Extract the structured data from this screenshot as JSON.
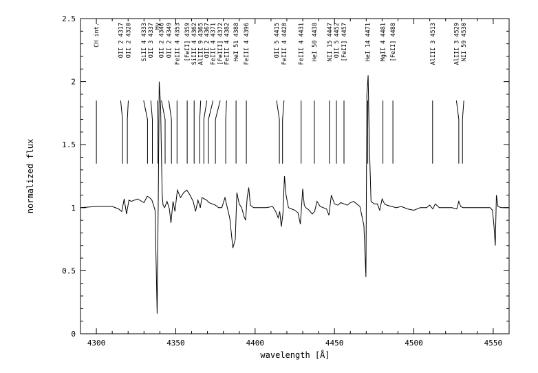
{
  "chart_data": {
    "type": "line",
    "title": "",
    "xlabel": "wavelength [Å]",
    "ylabel": "normalized flux",
    "xlim": [
      4290,
      4560
    ],
    "ylim": [
      0,
      2.5
    ],
    "xticks": [
      4300,
      4350,
      4400,
      4450,
      4500,
      4550
    ],
    "xtick_labels": [
      "4300",
      "4350",
      "4400",
      "4450",
      "4500",
      "4550"
    ],
    "yticks": [
      0,
      0.5,
      1,
      1.5,
      2,
      2.5
    ],
    "ytick_labels": [
      "0",
      "0.5",
      "1",
      "1.5",
      "2",
      "2.5"
    ],
    "grid": false,
    "series": [
      {
        "x": [
          4290,
          4300,
          4310,
          4314,
          4316,
          4317.5,
          4319,
          4320.5,
          4322,
          4326,
          4330,
          4332,
          4333.5,
          4335,
          4337,
          4338.3,
          4339,
          4339.6,
          4340.5,
          4341,
          4341.5,
          4342,
          4343,
          4344.5,
          4346,
          4347,
          4348.3,
          4349.5,
          4351,
          4353,
          4355,
          4357,
          4359,
          4361,
          4362.5,
          4364,
          4365.5,
          4366.5,
          4368,
          4369.5,
          4371,
          4373,
          4375,
          4377,
          4379,
          4381,
          4382.5,
          4384,
          4386,
          4387.5,
          4388.5,
          4390,
          4391.5,
          4393,
          4394,
          4395,
          4396,
          4397,
          4399,
          4403,
          4407,
          4411,
          4413,
          4414.5,
          4415.5,
          4416.5,
          4417.5,
          4418.5,
          4419.5,
          4421,
          4423,
          4425,
          4427,
          4428.5,
          4430,
          4431,
          4432,
          4434,
          4436,
          4437.5,
          4439,
          4441,
          4443,
          4445,
          4446.5,
          4448,
          4450,
          4452,
          4454,
          4456,
          4458,
          4460,
          4462,
          4464,
          4466,
          4468.5,
          4469.8,
          4470.4,
          4471.2,
          4472,
          4473,
          4475,
          4477,
          4478.5,
          4480,
          4481.5,
          4483,
          4486,
          4489,
          4492,
          4496,
          4500,
          4504,
          4508,
          4510,
          4512,
          4513.5,
          4516,
          4520,
          4524,
          4527,
          4528.3,
          4529.5,
          4531,
          4535,
          4540,
          4545,
          4548,
          4549.5,
          4550.5,
          4551.3,
          4552,
          4553,
          4555,
          4560
        ],
        "y": [
          1.0,
          1.01,
          1.01,
          0.99,
          0.97,
          1.07,
          0.95,
          1.06,
          1.05,
          1.07,
          1.04,
          1.09,
          1.08,
          1.06,
          0.98,
          0.16,
          1.1,
          2.0,
          1.8,
          1.4,
          1.1,
          1.02,
          1.0,
          1.05,
          0.99,
          0.88,
          1.05,
          0.97,
          1.14,
          1.08,
          1.12,
          1.14,
          1.1,
          1.05,
          0.97,
          1.06,
          1.0,
          1.08,
          1.07,
          1.06,
          1.04,
          1.03,
          1.02,
          1.0,
          1.0,
          1.08,
          1.0,
          0.92,
          0.68,
          0.75,
          1.12,
          1.03,
          1.0,
          0.93,
          0.9,
          1.08,
          1.16,
          1.02,
          1.0,
          1.0,
          1.0,
          1.01,
          0.97,
          0.92,
          0.97,
          0.85,
          0.95,
          1.25,
          1.1,
          1.0,
          0.99,
          0.98,
          0.96,
          0.87,
          1.15,
          1.02,
          1.0,
          0.98,
          0.95,
          0.97,
          1.05,
          1.01,
          1.0,
          0.99,
          0.94,
          1.1,
          1.03,
          1.02,
          1.04,
          1.03,
          1.02,
          1.04,
          1.05,
          1.03,
          1.01,
          0.86,
          0.45,
          1.9,
          2.05,
          1.5,
          1.05,
          1.03,
          1.03,
          0.98,
          1.07,
          1.03,
          1.02,
          1.01,
          1.0,
          1.01,
          0.99,
          0.98,
          1.0,
          1.0,
          1.02,
          0.99,
          1.03,
          1.0,
          1.0,
          1.0,
          0.99,
          1.05,
          1.01,
          1.0,
          1.0,
          1.0,
          1.0,
          1.0,
          0.98,
          0.85,
          0.7,
          1.1,
          1.01,
          1.0,
          1.0
        ]
      }
    ],
    "line_ids": [
      {
        "label": "CH int.",
        "lam": 4300.0,
        "top": 4300.0,
        "bottom": 4300.0
      },
      {
        "label": "OII 2 4317",
        "lam": 4317.1,
        "top": 4315.3,
        "bottom": 4316.5
      },
      {
        "label": "OII 2 4320",
        "lam": 4319.6,
        "top": 4320.1,
        "bottom": 4319.5
      },
      {
        "label": "SiII 4 4333",
        "lam": 4332.7,
        "top": 4329.8,
        "bottom": 4332.2
      },
      {
        "label": "OII 3 4337",
        "lam": 4336.9,
        "top": 4334.3,
        "bottom": 4335.3
      },
      {
        "label": "Hγ",
        "lam": 4340.5,
        "top": 4338.4,
        "bottom": 4338.8
      },
      {
        "label": "OII 2 4346",
        "lam": 4345.6,
        "top": 4341.0,
        "bottom": 4343.3
      },
      {
        "label": "OII 2 4349",
        "lam": 4349.4,
        "top": 4345.6,
        "bottom": 4347.3
      },
      {
        "label": "FeIII 4 4353",
        "lam": 4353.6,
        "top": 4350.8,
        "bottom": 4350.8
      },
      {
        "label": "[FeII] 4359",
        "lam": 4359.3,
        "top": 4357.2,
        "bottom": 4357.2
      },
      {
        "label": "SiIII 4 4362",
        "lam": 4362.0,
        "top": 4361.6,
        "bottom": 4361.6
      },
      {
        "label": "AlIII 9 4365",
        "lam": 4365.1,
        "top": 4365.7,
        "bottom": 4365.1
      },
      {
        "label": "OII 2 4367",
        "lam": 4366.9,
        "top": 4369.6,
        "bottom": 4367.7
      },
      {
        "label": "FeIII 4 4371",
        "lam": 4371.0,
        "top": 4373.5,
        "bottom": 4370.6
      },
      {
        "label": "[FeIII] 4372",
        "lam": 4372.4,
        "top": 4378.0,
        "bottom": 4375.0
      },
      {
        "label": "FeIII 4 4382",
        "lam": 4382.5,
        "top": 4382.0,
        "bottom": 4381.5
      },
      {
        "label": "HeI 51 4388",
        "lam": 4387.9,
        "top": 4388.0,
        "bottom": 4388.0
      },
      {
        "label": "FeIII 4 4396",
        "lam": 4395.8,
        "top": 4394.5,
        "bottom": 4394.5
      },
      {
        "label": "OII 5 4415",
        "lam": 4414.9,
        "top": 4413.5,
        "bottom": 4415.3
      },
      {
        "label": "FeIII 4 4420",
        "lam": 4419.6,
        "top": 4418.2,
        "bottom": 4417.3
      },
      {
        "label": "FeIII 4 4431",
        "lam": 4431.0,
        "top": 4429.0,
        "bottom": 4429.0
      },
      {
        "label": "HeI 50 4438",
        "lam": 4437.6,
        "top": 4437.3,
        "bottom": 4437.3
      },
      {
        "label": "NII 15 4447",
        "lam": 4447.0,
        "top": 4446.8,
        "bottom": 4446.8
      },
      {
        "label": "OII 5 4452",
        "lam": 4452.4,
        "top": 4451.2,
        "bottom": 4451.2
      },
      {
        "label": "[FeII] 4457",
        "lam": 4457.0,
        "top": 4456.0,
        "bottom": 4456.0
      },
      {
        "label": "HeI 14 4471",
        "lam": 4471.5,
        "top": 4471.0,
        "bottom": 4471.0
      },
      {
        "label": "MgII 4 4481",
        "lam": 4481.1,
        "top": 4480.5,
        "bottom": 4480.5
      },
      {
        "label": "[FeII] 4488",
        "lam": 4488.0,
        "top": 4486.8,
        "bottom": 4486.8
      },
      {
        "label": "AlIII 3 4513",
        "lam": 4512.6,
        "top": 4511.8,
        "bottom": 4511.8
      },
      {
        "label": "AlIII 3 4529",
        "lam": 4529.2,
        "top": 4526.8,
        "bottom": 4528.3
      },
      {
        "label": "NII 59 4530",
        "lam": 4530.4,
        "top": 4531.5,
        "bottom": 4530.6
      }
    ]
  }
}
